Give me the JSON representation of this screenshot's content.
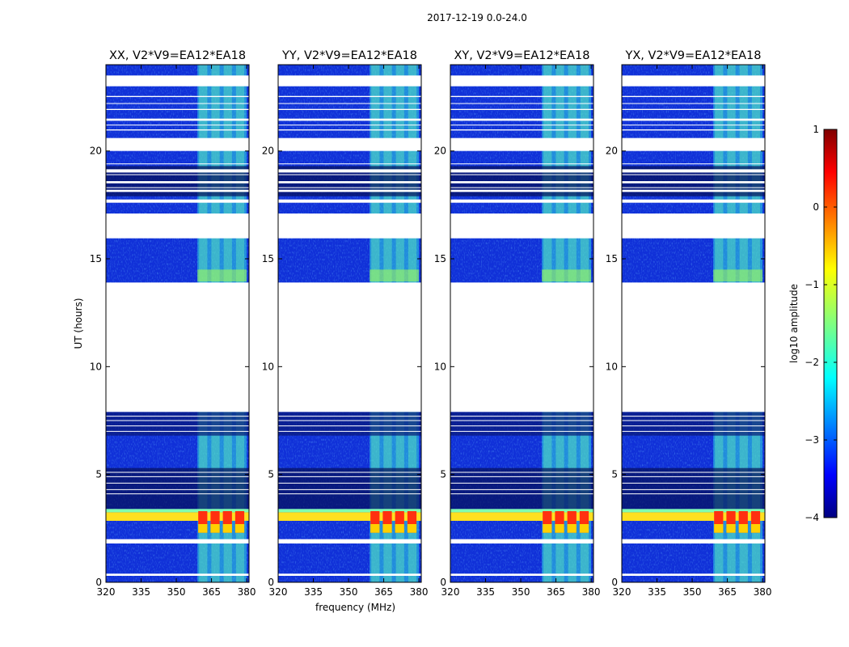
{
  "figure": {
    "title": "2017-12-19 0.0-24.0"
  },
  "chart_data": [
    {
      "type": "heatmap",
      "title": "XX, V2*V9=EA12*EA18",
      "xlabel": "",
      "ylabel": "UT (hours)",
      "xlim": [
        320,
        381
      ],
      "ylim": [
        0,
        24
      ],
      "xticks": [
        320,
        335,
        350,
        365,
        380
      ],
      "yticks": [
        0,
        5,
        10,
        15,
        20
      ],
      "rfi_band_mhz": [
        359,
        380
      ],
      "bright_event_hours": [
        2.3,
        3.4
      ]
    },
    {
      "type": "heatmap",
      "title": "YY, V2*V9=EA12*EA18",
      "xlabel": "frequency (MHz)",
      "ylabel": "",
      "xlim": [
        320,
        381
      ],
      "ylim": [
        0,
        24
      ],
      "xticks": [
        320,
        335,
        350,
        365,
        380
      ],
      "yticks": [
        0,
        5,
        10,
        15,
        20
      ],
      "rfi_band_mhz": [
        359,
        380
      ],
      "bright_event_hours": [
        2.3,
        3.4
      ]
    },
    {
      "type": "heatmap",
      "title": "XY, V2*V9=EA12*EA18",
      "xlabel": "",
      "ylabel": "",
      "xlim": [
        320,
        381
      ],
      "ylim": [
        0,
        24
      ],
      "xticks": [
        320,
        335,
        350,
        365,
        380
      ],
      "yticks": [
        0,
        5,
        10,
        15,
        20
      ],
      "rfi_band_mhz": [
        359,
        380
      ],
      "bright_event_hours": [
        2.3,
        3.4
      ]
    },
    {
      "type": "heatmap",
      "title": "YX, V2*V9=EA12*EA18",
      "xlabel": "",
      "ylabel": "",
      "xlim": [
        320,
        381
      ],
      "ylim": [
        0,
        24
      ],
      "xticks": [
        320,
        335,
        350,
        365,
        380
      ],
      "yticks": [
        0,
        5,
        10,
        15,
        20
      ],
      "rfi_band_mhz": [
        359,
        380
      ],
      "bright_event_hours": [
        2.3,
        3.4
      ]
    }
  ],
  "data_gaps_hours": [
    [
      7.9,
      13.9
    ],
    [
      15.95,
      17.0
    ],
    [
      20.0,
      20.6
    ],
    [
      23.0,
      23.5
    ],
    [
      0.3,
      0.4
    ],
    [
      1.8,
      2.0
    ],
    [
      16.9,
      17.1
    ],
    [
      17.6,
      17.75
    ],
    [
      18.1,
      18.2
    ],
    [
      18.5,
      18.6
    ],
    [
      19.0,
      19.15
    ],
    [
      20.95,
      21.0
    ],
    [
      21.4,
      21.5
    ],
    [
      21.9,
      21.95
    ],
    [
      22.5,
      22.55
    ],
    [
      24.0,
      24.0
    ]
  ],
  "colorbar": {
    "label": "log10 amplitude",
    "ticks": [
      "1",
      "0",
      "−1",
      "−2",
      "−3",
      "−4"
    ],
    "range": [
      -4,
      1
    ],
    "colors": [
      "#000080",
      "#0000ff",
      "#0080ff",
      "#00ffff",
      "#80ff80",
      "#ffff00",
      "#ff8000",
      "#ff0000",
      "#800000"
    ]
  }
}
